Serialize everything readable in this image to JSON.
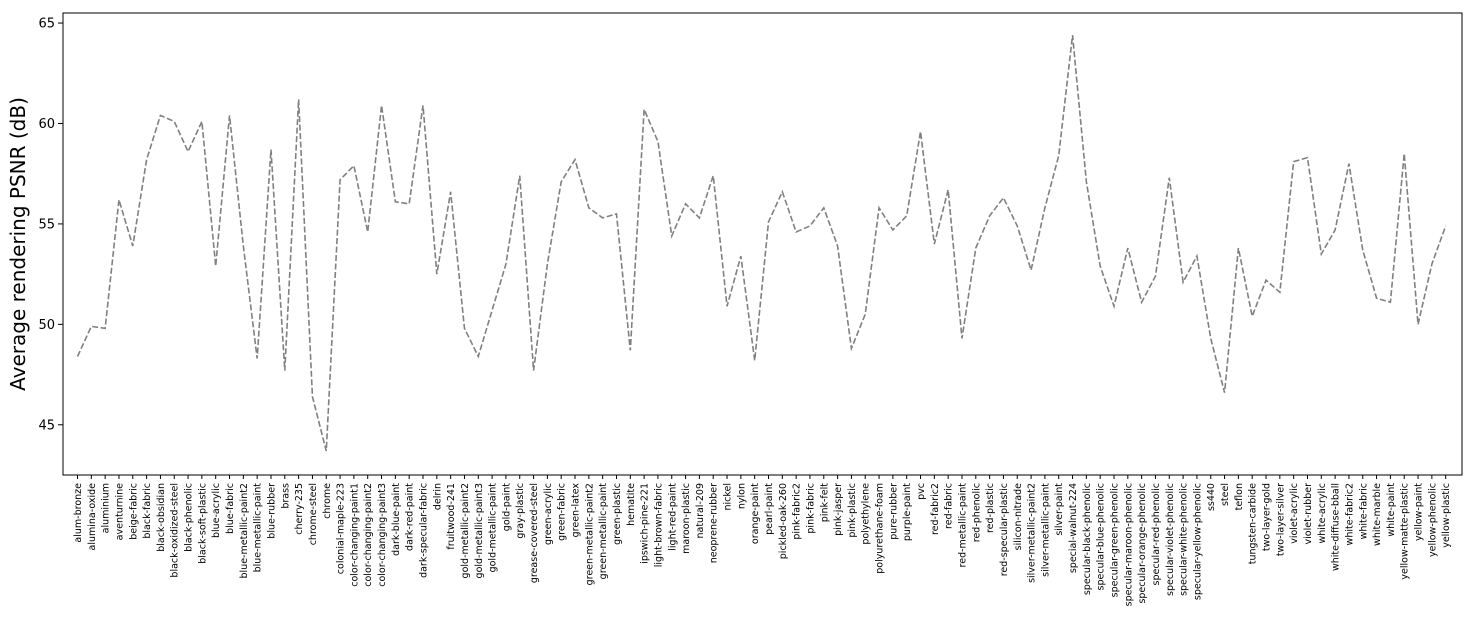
{
  "chart_data": {
    "type": "line",
    "ylabel": "Average rendering PSNR (dB)",
    "xlabel": "",
    "ylim": [
      42.5,
      65.5
    ],
    "yticks": [
      45,
      50,
      55,
      60,
      65
    ],
    "grid": false,
    "line_color": "#808080",
    "line_style": "dashed",
    "categories": [
      "alum-bronze",
      "alumina-oxide",
      "aluminium",
      "aventurnine",
      "beige-fabric",
      "black-fabric",
      "black-obsidian",
      "black-oxidized-steel",
      "black-phenolic",
      "black-soft-plastic",
      "blue-acrylic",
      "blue-fabric",
      "blue-metallic-paint2",
      "blue-metallic-paint",
      "blue-rubber",
      "brass",
      "cherry-235",
      "chrome-steel",
      "chrome",
      "colonial-maple-223",
      "color-changing-paint1",
      "color-changing-paint2",
      "color-changing-paint3",
      "dark-blue-paint",
      "dark-red-paint",
      "dark-specular-fabric",
      "delrin",
      "fruitwood-241",
      "gold-metallic-paint2",
      "gold-metallic-paint3",
      "gold-metallic-paint",
      "gold-paint",
      "gray-plastic",
      "grease-covered-steel",
      "green-acrylic",
      "green-fabric",
      "green-latex",
      "green-metallic-paint2",
      "green-metallic-paint",
      "green-plastic",
      "hematite",
      "ipswich-pine-221",
      "light-brown-fabric",
      "light-red-paint",
      "maroon-plastic",
      "natural-209",
      "neoprene-rubber",
      "nickel",
      "nylon",
      "orange-paint",
      "pearl-paint",
      "pickled-oak-260",
      "pink-fabric2",
      "pink-fabric",
      "pink-felt",
      "pink-jasper",
      "pink-plastic",
      "polyethylene",
      "polyurethane-foam",
      "pure-rubber",
      "purple-paint",
      "pvc",
      "red-fabric2",
      "red-fabric",
      "red-metallic-paint",
      "red-phenolic",
      "red-plastic",
      "red-specular-plastic",
      "silicon-nitrade",
      "silver-metallic-paint2",
      "silver-metallic-paint",
      "silver-paint",
      "special-walnut-224",
      "specular-black-phenolic",
      "specular-blue-phenolic",
      "specular-green-phenolic",
      "specular-maroon-phenolic",
      "specular-orange-phenolic",
      "specular-red-phenolic",
      "specular-violet-phenolic",
      "specular-white-phenolic",
      "specular-yellow-phenolic",
      "ss440",
      "steel",
      "teflon",
      "tungsten-carbide",
      "two-layer-gold",
      "two-layer-silver",
      "violet-acrylic",
      "violet-rubber",
      "white-acrylic",
      "white-diffuse-bball",
      "white-fabric2",
      "white-fabric",
      "white-marble",
      "white-paint",
      "yellow-matte-plastic",
      "yellow-paint",
      "yellow-phenolic",
      "yellow-plastic"
    ],
    "values": [
      48.4,
      49.9,
      49.8,
      56.2,
      53.9,
      58.2,
      60.4,
      60.1,
      58.6,
      60.1,
      52.9,
      60.4,
      53.9,
      48.3,
      58.7,
      47.7,
      61.2,
      46.4,
      43.7,
      57.2,
      57.9,
      54.6,
      60.9,
      56.1,
      56.0,
      60.9,
      52.5,
      56.6,
      49.8,
      48.4,
      50.7,
      53.0,
      57.4,
      47.7,
      53.0,
      57.1,
      58.2,
      55.8,
      55.3,
      55.5,
      48.7,
      60.7,
      59.1,
      54.4,
      56.0,
      55.3,
      57.4,
      50.9,
      53.4,
      48.2,
      55.1,
      56.6,
      54.6,
      54.9,
      55.8,
      53.9,
      48.8,
      50.5,
      55.8,
      54.7,
      55.4,
      59.6,
      54.0,
      56.7,
      49.3,
      53.8,
      55.4,
      56.3,
      54.9,
      52.7,
      55.8,
      58.4,
      64.4,
      57.1,
      52.9,
      50.9,
      53.8,
      51.1,
      52.4,
      57.3,
      52.1,
      53.4,
      49.3,
      46.6,
      53.8,
      50.4,
      52.2,
      51.6,
      58.1,
      58.3,
      53.5,
      54.7,
      58.0,
      53.7,
      51.3,
      51.1,
      58.5,
      50.0,
      53.0,
      54.9
    ]
  }
}
